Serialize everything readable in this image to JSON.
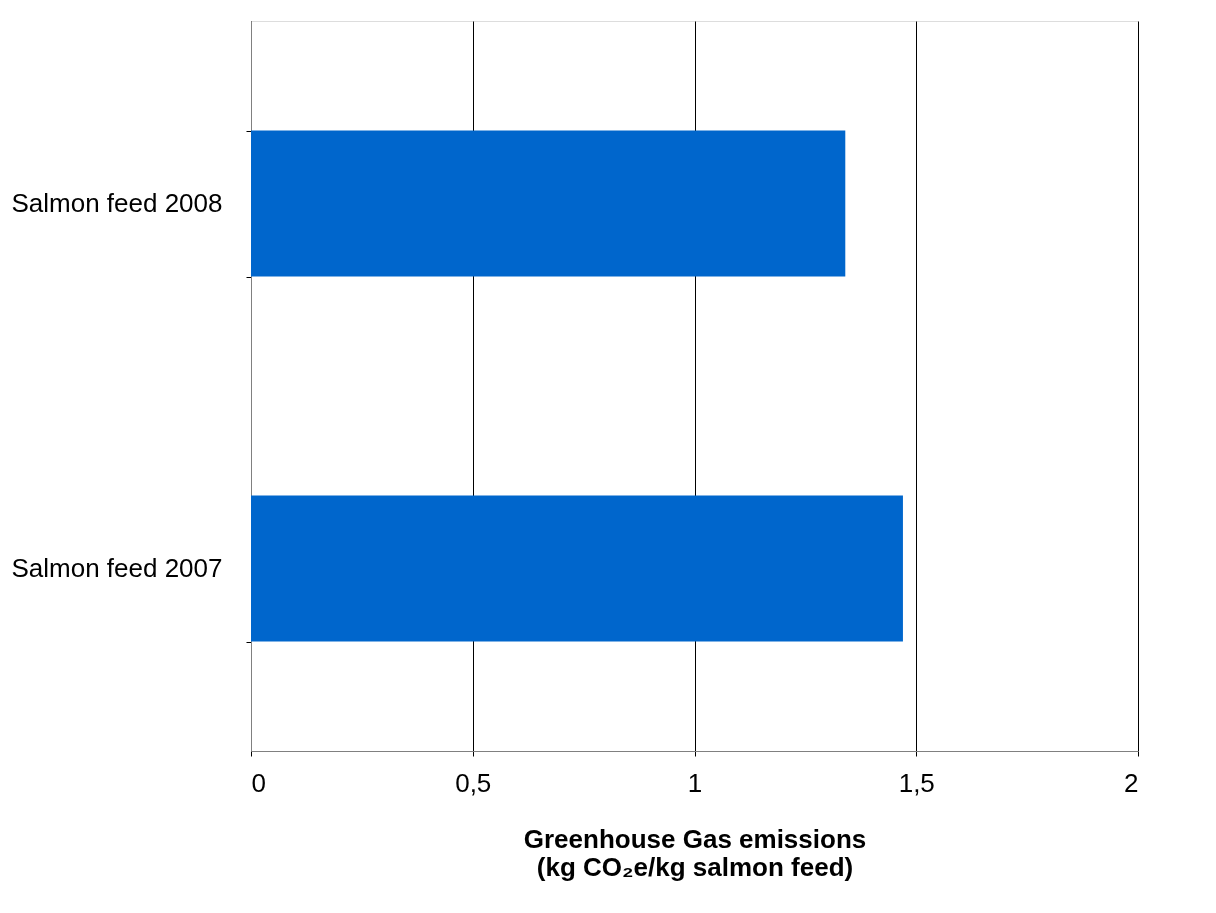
{
  "chart_data": {
    "type": "bar",
    "orientation": "horizontal",
    "categories": [
      "Salmon feed 2008",
      "Salmon feed 2007"
    ],
    "values": [
      1.34,
      1.47
    ],
    "color": "#0066cc",
    "xlabel": "Greenhouse Gas emissions\n(kg CO₂e/kg salmon feed)",
    "xlim": [
      0,
      2
    ],
    "xticks": [
      0,
      {
        "value": 0.5,
        "label": "0,5"
      },
      1,
      {
        "value": 1.5,
        "label": "1,5"
      },
      2
    ],
    "grid": "x"
  }
}
